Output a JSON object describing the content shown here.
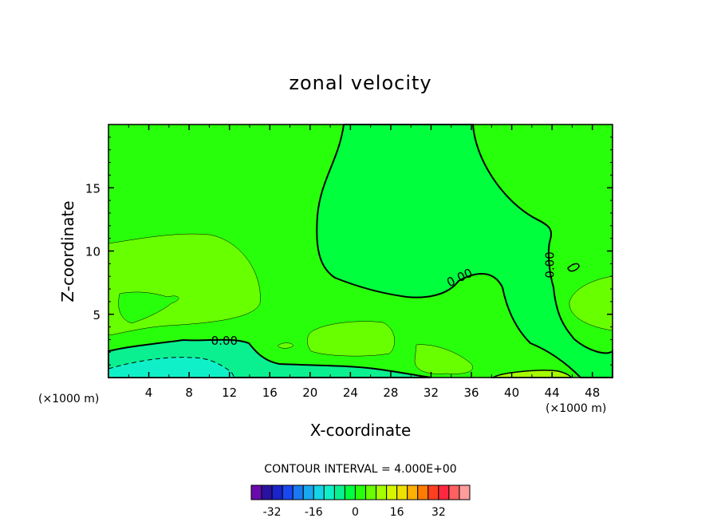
{
  "chart_data": {
    "type": "heatmap",
    "title": "zonal velocity",
    "xlabel": "X-coordinate",
    "ylabel": "Z-coordinate",
    "x_unit": "(×1000 m)",
    "x_ticks": [
      4,
      8,
      12,
      16,
      20,
      24,
      28,
      32,
      36,
      40,
      44,
      48
    ],
    "x_tick_labels": [
      "4",
      "8",
      "12",
      "16",
      "20",
      "24",
      "28",
      "32",
      "36",
      "40",
      "44",
      "48"
    ],
    "y_ticks": [
      5,
      10,
      15
    ],
    "y_tick_labels": [
      "5",
      "10",
      "15"
    ],
    "xlim": [
      0,
      50
    ],
    "ylim": [
      0,
      20
    ],
    "contour_interval_text": "CONTOUR INTERVAL = 4.000E+00",
    "contour_labels": [
      {
        "text": "0.00",
        "x": 11.5,
        "z": 2.6
      },
      {
        "text": "0.00",
        "x": 35.0,
        "z": 7.6
      },
      {
        "text": "0.00",
        "x": 44.2,
        "z": 8.9
      }
    ],
    "colorbar": {
      "colors": [
        "#6a0aaa",
        "#2a12a0",
        "#1a24c8",
        "#1848f0",
        "#1a78f0",
        "#18a8f0",
        "#14d4e6",
        "#10f0c8",
        "#0af090",
        "#00ff3c",
        "#28ff0a",
        "#68ff00",
        "#a6ff00",
        "#d6f600",
        "#f0e000",
        "#ffb000",
        "#ff7c00",
        "#ff4020",
        "#ff2840",
        "#ff6060",
        "#ff9c9c"
      ],
      "tick_values": [
        -32,
        -16,
        0,
        16,
        32
      ],
      "tick_labels": [
        "-32",
        "-16",
        "0",
        "16",
        "32"
      ],
      "level_min": -40,
      "level_step": 4
    }
  }
}
